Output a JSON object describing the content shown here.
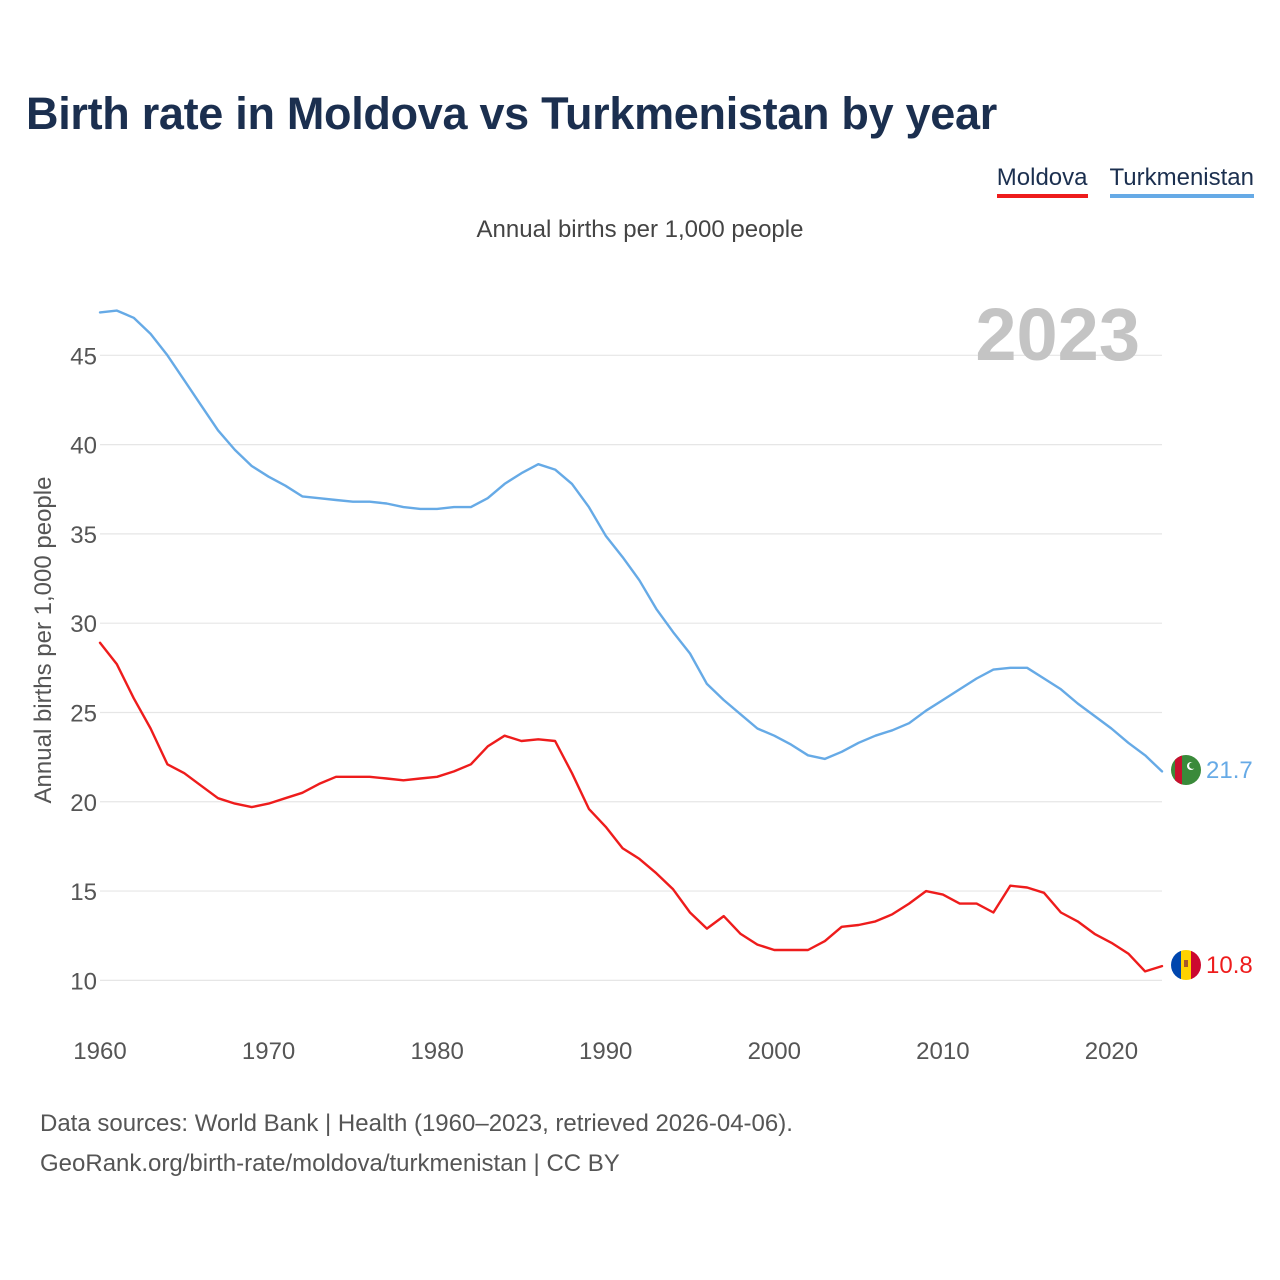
{
  "title": "Birth rate in Moldova vs Turkmenistan by year",
  "subtitle": "Annual births per 1,000 people",
  "legend": [
    {
      "label": "Moldova",
      "color": "#ee1c1c"
    },
    {
      "label": "Turkmenistan",
      "color": "#66aae6"
    }
  ],
  "footer": {
    "line1": "Data sources: World Bank | Health (1960–2023, retrieved 2026-04-06).",
    "line2": "GeoRank.org/birth-rate/moldova/turkmenistan | CC BY"
  },
  "chart_data": {
    "type": "line",
    "title": "Birth rate in Moldova vs Turkmenistan by year",
    "ylabel": "Annual births per 1,000 people",
    "xlabel": "",
    "year_label": "2023",
    "xlim": [
      1960,
      2023
    ],
    "ylim": [
      7.5,
      50
    ],
    "x_ticks": [
      1960,
      1970,
      1980,
      1990,
      2000,
      2010,
      2020
    ],
    "y_ticks": [
      10,
      15,
      20,
      25,
      30,
      35,
      40,
      45
    ],
    "grid": true,
    "series": [
      {
        "name": "Moldova",
        "color": "#ee1c1c",
        "end_label": "10.8",
        "x_start": 1960,
        "values": [
          28.9,
          27.7,
          25.8,
          24.1,
          22.1,
          21.6,
          20.9,
          20.2,
          19.9,
          19.7,
          19.9,
          20.2,
          20.5,
          21.0,
          21.4,
          21.4,
          21.4,
          21.3,
          21.2,
          21.3,
          21.4,
          21.7,
          22.1,
          23.1,
          23.7,
          23.4,
          23.5,
          23.4,
          21.6,
          19.6,
          18.6,
          17.4,
          16.8,
          16.0,
          15.1,
          13.8,
          12.9,
          13.6,
          12.6,
          12.0,
          11.7,
          11.7,
          11.7,
          12.2,
          13.0,
          13.1,
          13.3,
          13.7,
          14.3,
          15.0,
          14.8,
          14.3,
          14.3,
          13.8,
          15.3,
          15.2,
          14.9,
          13.8,
          13.3,
          12.6,
          12.1,
          11.5,
          10.5,
          10.8
        ]
      },
      {
        "name": "Turkmenistan",
        "color": "#66aae6",
        "end_label": "21.7",
        "x_start": 1960,
        "values": [
          47.4,
          47.5,
          47.1,
          46.2,
          45.0,
          43.6,
          42.2,
          40.8,
          39.7,
          38.8,
          38.2,
          37.7,
          37.1,
          37.0,
          36.9,
          36.8,
          36.8,
          36.7,
          36.5,
          36.4,
          36.4,
          36.5,
          36.5,
          37.0,
          37.8,
          38.4,
          38.9,
          38.6,
          37.8,
          36.5,
          34.9,
          33.7,
          32.4,
          30.8,
          29.5,
          28.3,
          26.6,
          25.7,
          24.9,
          24.1,
          23.7,
          23.2,
          22.6,
          22.4,
          22.8,
          23.3,
          23.7,
          24.0,
          24.4,
          25.1,
          25.7,
          26.3,
          26.9,
          27.4,
          27.5,
          27.5,
          26.9,
          26.3,
          25.5,
          24.8,
          24.1,
          23.3,
          22.6,
          21.7
        ]
      }
    ]
  }
}
